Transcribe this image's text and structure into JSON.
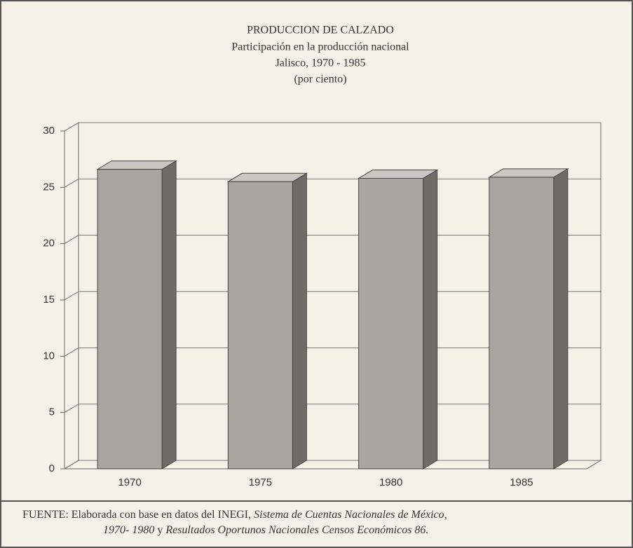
{
  "chart_data": {
    "type": "bar3d",
    "title": "PRODUCCION DE CALZADO",
    "subtitle": [
      "Participación en la producción nacional",
      "Jalisco, 1970 - 1985",
      "(por ciento)"
    ],
    "categories": [
      "1970",
      "1975",
      "1980",
      "1985"
    ],
    "values": [
      26.6,
      25.5,
      25.8,
      25.9
    ],
    "color": "#a9a5a0",
    "ylim": [
      0,
      30
    ],
    "yticks": [
      0,
      5,
      10,
      15,
      20,
      25,
      30
    ],
    "grid": true,
    "source": [
      "FUENTE: Elaborada con base en datos del INEGI,",
      "Sistema de Cuentas Nacionales de México,",
      "1970- 1980",
      "y",
      "Resultados Oportunos Nacionales Censos Económicos 86."
    ]
  }
}
